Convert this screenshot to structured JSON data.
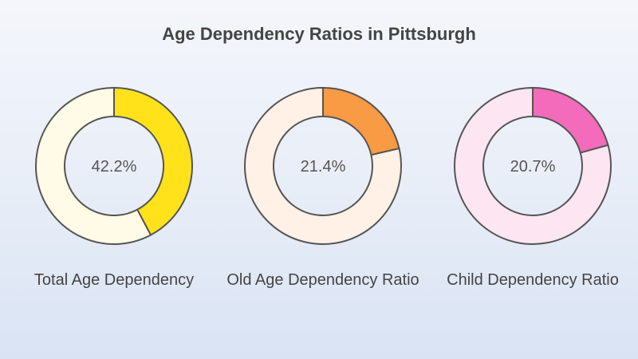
{
  "chart_data": {
    "type": "pie",
    "title": "Age Dependency Ratios in Pittsburgh",
    "charts": [
      {
        "label": "Total Age Dependency",
        "value": 42.2,
        "display": "42.2%",
        "color": "#ffe21a",
        "track_color": "#fffbe6"
      },
      {
        "label": "Old Age Dependency Ratio",
        "value": 21.4,
        "display": "21.4%",
        "color": "#f99a45",
        "track_color": "#fff1e6"
      },
      {
        "label": "Child Dependency Ratio",
        "value": 20.7,
        "display": "20.7%",
        "color": "#f46bbb",
        "track_color": "#fde6f2"
      }
    ]
  }
}
